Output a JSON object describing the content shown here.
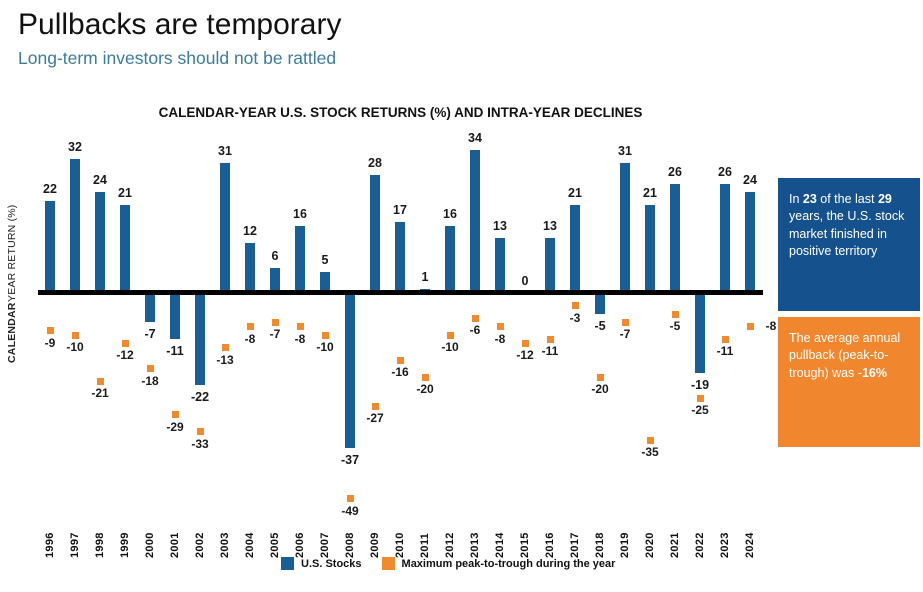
{
  "header": {
    "title": "Pullbacks are temporary",
    "subtitle": "Long-term investors should not be rattled"
  },
  "chart_data": {
    "type": "bar",
    "title": "CALENDAR-YEAR U.S. STOCK RETURNS (%) AND INTRA-YEAR DECLINES",
    "ylabel": "CALENDAR YEAR RETURN (%)",
    "ylabel_bold_part": "CALENDAR",
    "ylabel_regular_part": " YEAR RETURN (%)",
    "xlabel": "",
    "grid": false,
    "legend_position": "bottom",
    "ylim": [
      -55,
      38
    ],
    "categories": [
      "1996",
      "1997",
      "1998",
      "1999",
      "2000",
      "2001",
      "2002",
      "2003",
      "2004",
      "2005",
      "2006",
      "2007",
      "2008",
      "2009",
      "2010",
      "2011",
      "2012",
      "2013",
      "2014",
      "2015",
      "2016",
      "2017",
      "2018",
      "2019",
      "2020",
      "2021",
      "2022",
      "2023",
      "2024"
    ],
    "series": [
      {
        "name": "U.S. Stocks",
        "type": "bar",
        "color": "#1B5E94",
        "values": [
          22,
          32,
          24,
          21,
          -7,
          -11,
          -22,
          31,
          12,
          6,
          16,
          5,
          -37,
          28,
          17,
          1,
          16,
          34,
          13,
          0,
          13,
          21,
          -5,
          31,
          21,
          26,
          -19,
          26,
          24
        ]
      },
      {
        "name": "Maximum peak-to-trough during the year",
        "type": "point",
        "color": "#EE8A30",
        "values": [
          -9,
          -10,
          -21,
          -12,
          -18,
          -29,
          -33,
          -13,
          -8,
          -7,
          -8,
          -10,
          -49,
          -27,
          -16,
          -20,
          -10,
          -6,
          -8,
          -12,
          -11,
          -3,
          -20,
          -7,
          -35,
          -5,
          -25,
          -11,
          -8
        ]
      }
    ]
  },
  "legend": {
    "items": [
      {
        "label": "U.S. Stocks",
        "color": "#1B5E94"
      },
      {
        "label": "Maximum peak-to-trough during the year",
        "color": "#EE8A30"
      }
    ]
  },
  "callouts": {
    "positive": {
      "bg": "#15518D",
      "segments": [
        {
          "text": "In ",
          "bold": false
        },
        {
          "text": "23",
          "bold": true
        },
        {
          "text": " of the last ",
          "bold": false
        },
        {
          "text": "29",
          "bold": true
        },
        {
          "text": " years, the U.S. stock market finished in positive territory",
          "bold": false
        }
      ]
    },
    "pullback": {
      "bg": "#F0862D",
      "segments": [
        {
          "text": "The average annual pullback (peak-to-trough) was -",
          "bold": false
        },
        {
          "text": "16%",
          "bold": true
        }
      ]
    }
  },
  "colors": {
    "bar_blue": "#1B5E94",
    "marker_orange": "#EE8A30",
    "zero_line": "#000000",
    "subtitle_blue": "#3E7B9C",
    "callout_blue_bg": "#15518D",
    "callout_orange_bg": "#F0862D"
  }
}
